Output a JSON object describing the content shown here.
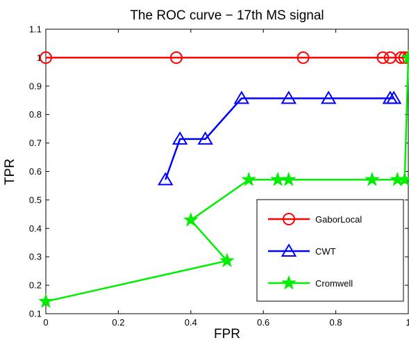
{
  "chart_data": {
    "type": "line",
    "title": "The ROC curve − 17th MS signal",
    "xlabel": "FPR",
    "ylabel": "TPR",
    "xlim": [
      0,
      1
    ],
    "ylim": [
      0.1,
      1.1
    ],
    "xticks": [
      0,
      0.2,
      0.4,
      0.6,
      0.8,
      1
    ],
    "xtick_labels": [
      "0",
      "0.2",
      "0.4",
      "0.6",
      "0.8",
      "1"
    ],
    "yticks": [
      0.1,
      0.2,
      0.3,
      0.4,
      0.5,
      0.6,
      0.7,
      0.8,
      0.9,
      1.0,
      1.1
    ],
    "ytick_labels": [
      "0.1",
      "0.2",
      "0.3",
      "0.4",
      "0.5",
      "0.6",
      "0.7",
      "0.8",
      "0.9",
      "1",
      "1.1"
    ],
    "grid": false,
    "legend_position": "lower-right",
    "series": [
      {
        "name": "GaborLocal",
        "color": "#ff0000",
        "marker": "circle",
        "x": [
          0,
          0.36,
          0.71,
          0.93,
          0.95,
          0.98,
          0.99,
          1.0
        ],
        "y": [
          1,
          1,
          1,
          1,
          1,
          1,
          1,
          1
        ]
      },
      {
        "name": "CWT",
        "color": "#0000ff",
        "marker": "triangle",
        "x": [
          0.33,
          0.37,
          0.44,
          0.54,
          0.67,
          0.78,
          0.95,
          0.96
        ],
        "y": [
          0.571,
          0.714,
          0.714,
          0.857,
          0.857,
          0.857,
          0.857,
          0.857
        ]
      },
      {
        "name": "Cromwell",
        "color": "#00ee00",
        "marker": "star",
        "x": [
          0,
          0.5,
          0.4,
          0.56,
          0.64,
          0.67,
          0.9,
          0.97,
          0.99,
          1.0
        ],
        "y": [
          0.143,
          0.286,
          0.429,
          0.571,
          0.571,
          0.571,
          0.571,
          0.571,
          0.571,
          1.0
        ]
      }
    ]
  }
}
